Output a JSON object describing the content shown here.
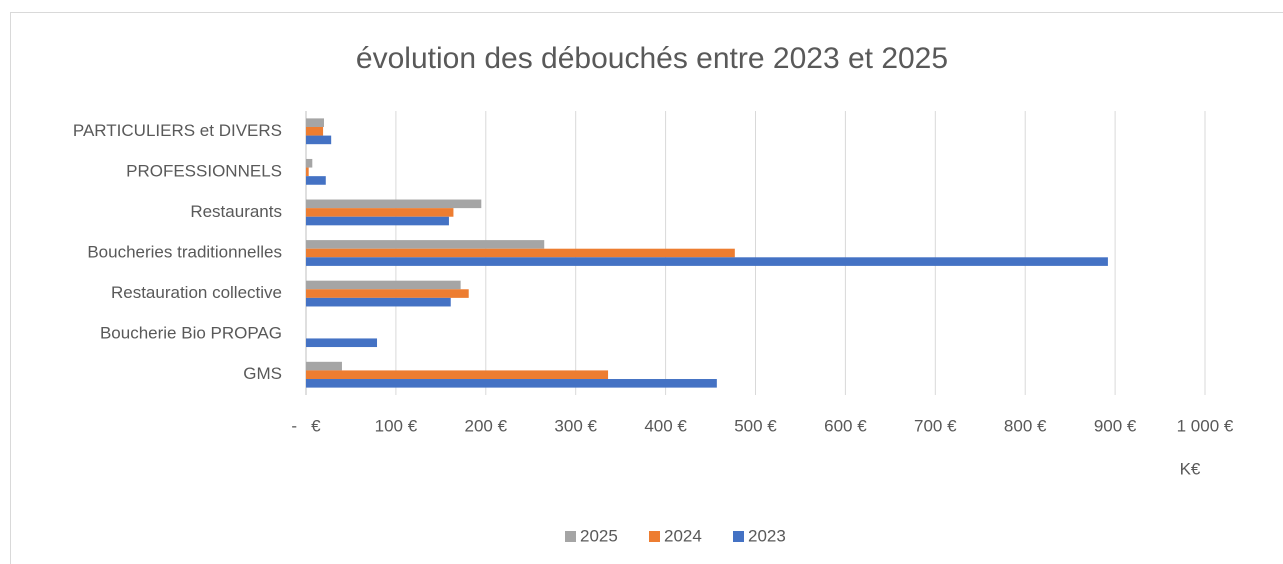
{
  "chart_data": {
    "type": "barh",
    "title": "évolution des débouchés entre 2023 et 2025",
    "x_label": "K€",
    "categories": [
      "PARTICULIERS et DIVERS",
      "PROFESSIONNELS",
      "Restaurants",
      "Boucheries traditionnelles",
      "Restauration collective",
      "Boucherie Bio PROPAG",
      "GMS"
    ],
    "series": [
      {
        "name": "2025",
        "color": "#a5a5a5",
        "values": [
          20,
          7,
          195,
          265,
          172,
          0,
          40
        ]
      },
      {
        "name": "2024",
        "color": "#ed7d31",
        "values": [
          19,
          3,
          164,
          477,
          181,
          0,
          336
        ]
      },
      {
        "name": "2023",
        "color": "#4472c4",
        "values": [
          28,
          22,
          159,
          892,
          161,
          79,
          457
        ]
      }
    ],
    "xlim": [
      0,
      1000
    ],
    "xticks": [
      {
        "value": 0,
        "label": "-   €"
      },
      {
        "value": 100,
        "label": "100 €"
      },
      {
        "value": 200,
        "label": "200 €"
      },
      {
        "value": 300,
        "label": "300 €"
      },
      {
        "value": 400,
        "label": "400 €"
      },
      {
        "value": 500,
        "label": "500 €"
      },
      {
        "value": 600,
        "label": "600 €"
      },
      {
        "value": 700,
        "label": "700 €"
      },
      {
        "value": 800,
        "label": "800 €"
      },
      {
        "value": 900,
        "label": "900 €"
      },
      {
        "value": 1000,
        "label": "1 000 €"
      }
    ],
    "grid": true,
    "legend": "bottom"
  }
}
